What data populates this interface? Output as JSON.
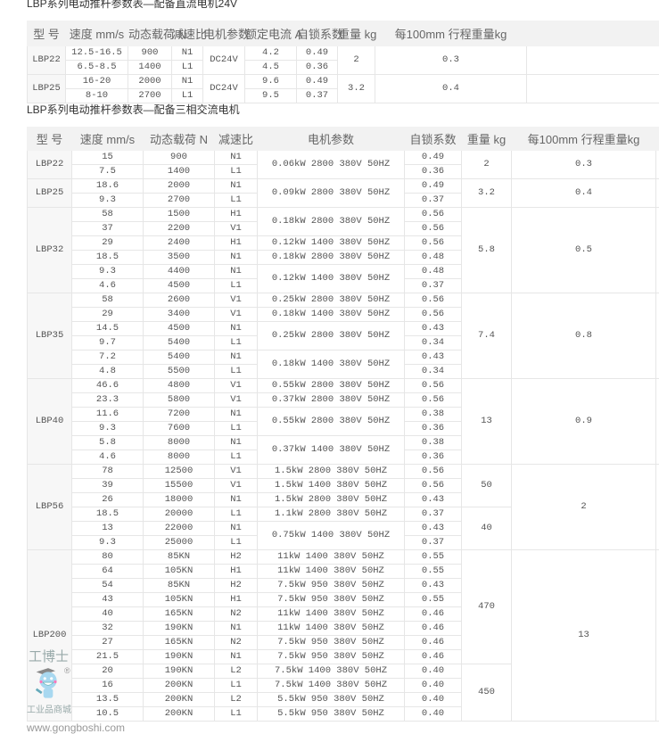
{
  "dc_table": {
    "title": "LBP系列电动推杆参数表—配备直流电机24V",
    "headers": [
      "型 号",
      "速度 mm/s",
      "动态载荷 N",
      "减速比",
      "电机参数",
      "额定电流 A",
      "自锁系数",
      "重量 kg",
      "每100mm 行程重量kg"
    ],
    "groups": [
      {
        "model": "LBP22",
        "rows": [
          [
            "12.5-16.5",
            "900",
            "N1",
            "DC24V",
            "4.2",
            "0.49",
            "2",
            "0.3"
          ],
          [
            "6.5-8.5",
            "1400",
            "L1",
            null,
            "4.5",
            "0.36",
            null,
            null
          ]
        ]
      },
      {
        "model": "LBP25",
        "rows": [
          [
            "16-20",
            "2000",
            "N1",
            "DC24V",
            "9.6",
            "0.49",
            "3.2",
            "0.4"
          ],
          [
            "8-10",
            "2700",
            "L1",
            null,
            "9.5",
            "0.37",
            null,
            null
          ]
        ]
      }
    ]
  },
  "ac_table": {
    "title": "LBP系列电动推杆参数表—配备三相交流电机",
    "headers": [
      "型 号",
      "速度 mm/s",
      "动态载荷 N",
      "减速比",
      "电机参数",
      "自锁系数",
      "重量 kg",
      "每100mm 行程重量kg"
    ],
    "groups": [
      {
        "model": "LBP22",
        "rows": [
          [
            "15",
            "900",
            "N1",
            "0.06kW 2800 380V 50HZ",
            "0.49",
            "2",
            "0.3"
          ],
          [
            "7.5",
            "1400",
            "L1",
            null,
            "0.36",
            null,
            null
          ]
        ]
      },
      {
        "model": "LBP25",
        "rows": [
          [
            "18.6",
            "2000",
            "N1",
            "0.09kW 2800 380V 50HZ",
            "0.49",
            "3.2",
            "0.4"
          ],
          [
            "9.3",
            "2700",
            "L1",
            null,
            "0.37",
            null,
            null
          ]
        ]
      },
      {
        "model": "LBP32",
        "rows": [
          [
            "58",
            "1500",
            "H1",
            "0.18kW 2800 380V 50HZ",
            "0.56",
            "5.8",
            "0.5"
          ],
          [
            "37",
            "2200",
            "V1",
            null,
            "0.56",
            null,
            null
          ],
          [
            "29",
            "2400",
            "H1",
            "0.12kW 1400 380V 50HZ",
            "0.56",
            null,
            null
          ],
          [
            "18.5",
            "3500",
            "N1",
            "0.18kW 2800 380V 50HZ",
            "0.48",
            null,
            null
          ],
          [
            "9.3",
            "4400",
            "N1",
            "0.12kW 1400 380V 50HZ",
            "0.48",
            null,
            null
          ],
          [
            "4.6",
            "4500",
            "L1",
            null,
            "0.37",
            null,
            null
          ]
        ]
      },
      {
        "model": "LBP35",
        "rows": [
          [
            "58",
            "2600",
            "V1",
            "0.25kW 2800 380V 50HZ",
            "0.56",
            "7.4",
            "0.8"
          ],
          [
            "29",
            "3400",
            "V1",
            "0.18kW 1400 380V 50HZ",
            "0.56",
            null,
            null
          ],
          [
            "14.5",
            "4500",
            "N1",
            "0.25kW 2800 380V 50HZ",
            "0.43",
            null,
            null
          ],
          [
            "9.7",
            "5400",
            "L1",
            null,
            "0.34",
            null,
            null
          ],
          [
            "7.2",
            "5400",
            "N1",
            "0.18kW 1400 380V 50HZ",
            "0.43",
            null,
            null
          ],
          [
            "4.8",
            "5500",
            "L1",
            null,
            "0.34",
            null,
            null
          ]
        ]
      },
      {
        "model": "LBP40",
        "rows": [
          [
            "46.6",
            "4800",
            "V1",
            "0.55kW 2800 380V 50HZ",
            "0.56",
            "13",
            "0.9"
          ],
          [
            "23.3",
            "5800",
            "V1",
            "0.37kW 2800 380V 50HZ",
            "0.56",
            null,
            null
          ],
          [
            "11.6",
            "7200",
            "N1",
            "0.55kW 2800 380V 50HZ",
            "0.38",
            null,
            null
          ],
          [
            "9.3",
            "7600",
            "L1",
            null,
            "0.36",
            null,
            null
          ],
          [
            "5.8",
            "8000",
            "N1",
            "0.37kW 1400 380V 50HZ",
            "0.38",
            null,
            null
          ],
          [
            "4.6",
            "8000",
            "L1",
            null,
            "0.36",
            null,
            null
          ]
        ]
      },
      {
        "model": "LBP56",
        "rows": [
          [
            "78",
            "12500",
            "V1",
            "1.5kW 2800 380V 50HZ",
            "0.56",
            "50",
            "2"
          ],
          [
            "39",
            "15500",
            "V1",
            "1.5kW 1400 380V 50HZ",
            "0.56",
            null,
            null
          ],
          [
            "26",
            "18000",
            "N1",
            "1.5kW 2800 380V 50HZ",
            "0.43",
            null,
            null
          ],
          [
            "18.5",
            "20000",
            "L1",
            "1.1kW 2800 380V 50HZ",
            "0.37",
            "40",
            null
          ],
          [
            "13",
            "22000",
            "N1",
            "0.75kW 1400 380V 50HZ",
            "0.43",
            null,
            null
          ],
          [
            "9.3",
            "25000",
            "L1",
            null,
            "0.37",
            null,
            null
          ]
        ]
      },
      {
        "model": "LBP200",
        "rows": [
          [
            "80",
            "85KN",
            "H2",
            "11kW 1400 380V 50HZ",
            "0.55",
            "470",
            "13"
          ],
          [
            "64",
            "105KN",
            "H1",
            "11kW 1400 380V 50HZ",
            "0.55",
            null,
            null
          ],
          [
            "54",
            "85KN",
            "H2",
            "7.5kW 950 380V 50HZ",
            "0.43",
            null,
            null
          ],
          [
            "43",
            "105KN",
            "H1",
            "7.5kW 950 380V 50HZ",
            "0.55",
            null,
            null
          ],
          [
            "40",
            "165KN",
            "N2",
            "11kW 1400 380V 50HZ",
            "0.46",
            null,
            null
          ],
          [
            "32",
            "190KN",
            "N1",
            "11kW 1400 380V 50HZ",
            "0.46",
            null,
            null
          ],
          [
            "27",
            "165KN",
            "N2",
            "7.5kW 950 380V 50HZ",
            "0.46",
            null,
            null
          ],
          [
            "21.5",
            "190KN",
            "N1",
            "7.5kW 950 380V 50HZ",
            "0.46",
            null,
            null
          ],
          [
            "20",
            "190KN",
            "L2",
            "7.5kW 1400 380V 50HZ",
            "0.40",
            "450",
            null
          ],
          [
            "16",
            "200KN",
            "L1",
            "7.5kW 1400 380V 50HZ",
            "0.40",
            null,
            null
          ],
          [
            "13.5",
            "200KN",
            "L2",
            "5.5kW 950 380V 50HZ",
            "0.40",
            null,
            null
          ],
          [
            "10.5",
            "200KN",
            "L1",
            "5.5kW 950 380V 50HZ",
            "0.40",
            null,
            null
          ]
        ]
      }
    ]
  },
  "watermark": {
    "brand": "工博士",
    "tagline": "工业品商城",
    "url": "www.gongboshi.com",
    "mark": "®"
  }
}
